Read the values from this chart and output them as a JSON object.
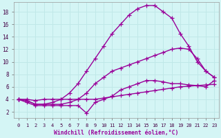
{
  "xlabel": "Windchill (Refroidissement éolien,°C)",
  "background_color": "#d4f5f5",
  "line_color": "#990099",
  "grid_color": "#c0e8e8",
  "xlim": [
    -0.5,
    23.5
  ],
  "ylim": [
    1.0,
    19.5
  ],
  "xticks": [
    0,
    1,
    2,
    3,
    4,
    5,
    6,
    7,
    8,
    9,
    10,
    11,
    12,
    13,
    14,
    15,
    16,
    17,
    18,
    19,
    20,
    21,
    22,
    23
  ],
  "yticks": [
    2,
    4,
    6,
    8,
    10,
    12,
    14,
    16,
    18
  ],
  "series1_x": [
    0,
    1,
    2,
    3,
    4,
    5,
    6,
    7,
    8,
    9,
    10,
    11,
    12,
    13,
    14,
    15,
    16,
    17,
    18,
    19,
    20,
    21,
    22,
    23
  ],
  "series1_y": [
    4.0,
    4.0,
    3.8,
    4.0,
    4.0,
    4.0,
    4.0,
    4.0,
    4.0,
    4.0,
    4.2,
    4.4,
    4.6,
    4.8,
    5.0,
    5.2,
    5.4,
    5.6,
    5.8,
    6.0,
    6.1,
    6.2,
    6.3,
    6.4
  ],
  "series2_x": [
    0,
    1,
    2,
    3,
    4,
    5,
    6,
    7,
    8,
    9,
    10,
    11,
    12,
    13,
    14,
    15,
    16,
    17,
    18,
    19,
    20,
    21,
    22,
    23
  ],
  "series2_y": [
    4.0,
    3.5,
    3.0,
    3.0,
    3.0,
    3.0,
    3.0,
    3.0,
    1.8,
    3.5,
    4.0,
    4.5,
    5.5,
    6.0,
    6.5,
    7.0,
    7.0,
    6.8,
    6.5,
    6.5,
    6.3,
    6.2,
    6.0,
    7.0
  ],
  "series3_x": [
    0,
    1,
    2,
    3,
    4,
    5,
    6,
    7,
    8,
    9,
    10,
    11,
    12,
    13,
    14,
    15,
    16,
    17,
    18,
    19,
    20,
    21,
    22,
    23
  ],
  "series3_y": [
    4.0,
    3.8,
    3.2,
    3.2,
    3.2,
    3.2,
    3.5,
    4.0,
    5.0,
    6.5,
    7.5,
    8.5,
    9.0,
    9.5,
    10.0,
    10.5,
    11.0,
    11.5,
    12.0,
    12.2,
    12.0,
    10.5,
    8.5,
    7.5
  ],
  "series4_x": [
    0,
    1,
    2,
    3,
    4,
    5,
    6,
    7,
    8,
    9,
    10,
    11,
    12,
    13,
    14,
    15,
    16,
    17,
    18,
    19,
    20,
    21,
    22,
    23
  ],
  "series4_y": [
    4.0,
    3.8,
    3.2,
    3.2,
    3.5,
    4.0,
    5.0,
    6.5,
    8.5,
    10.5,
    12.5,
    14.5,
    16.0,
    17.5,
    18.5,
    19.0,
    19.0,
    18.0,
    17.0,
    14.5,
    12.5,
    10.0,
    8.5,
    7.5
  ],
  "marker": "+",
  "markersize": 4,
  "linewidth": 1.0
}
